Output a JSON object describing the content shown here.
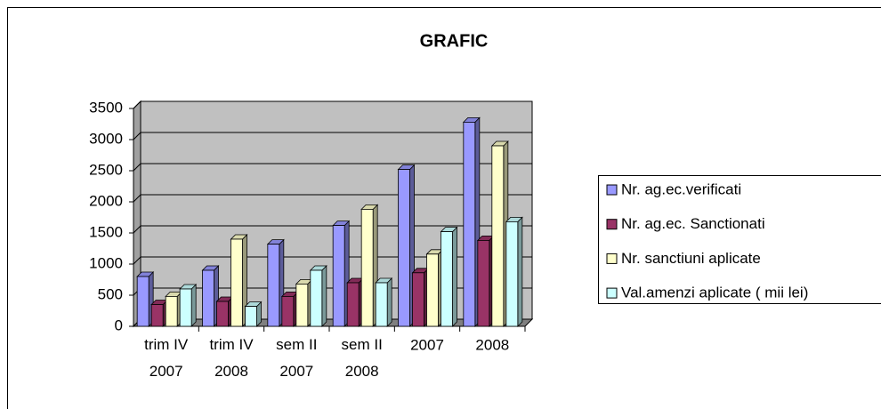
{
  "chart_data": {
    "type": "bar3d",
    "title": "GRAFIC",
    "categories": [
      "trim IV 2007",
      "trim IV 2008",
      "sem II 2007",
      "sem II 2008",
      "2007",
      "2008"
    ],
    "series": [
      {
        "name": "Nr. ag.ec.verificati",
        "color": "#9999ff",
        "values": [
          800,
          900,
          1320,
          1620,
          2520,
          3280
        ]
      },
      {
        "name": "Nr. ag.ec. Sanctionati",
        "color": "#993366",
        "values": [
          350,
          400,
          480,
          700,
          860,
          1380
        ]
      },
      {
        "name": "Nr. sanctiuni aplicate",
        "color": "#ffffcc",
        "values": [
          480,
          1400,
          680,
          1880,
          1160,
          2900
        ]
      },
      {
        "name": "Val.amenzi aplicate ( mii lei)",
        "color": "#ccffff",
        "values": [
          600,
          320,
          900,
          700,
          1520,
          1680
        ]
      }
    ],
    "ylim": [
      0,
      3500
    ],
    "yticks": [
      0,
      500,
      1000,
      1500,
      2000,
      2500,
      3000,
      3500
    ],
    "grid": true,
    "legend": "right"
  }
}
